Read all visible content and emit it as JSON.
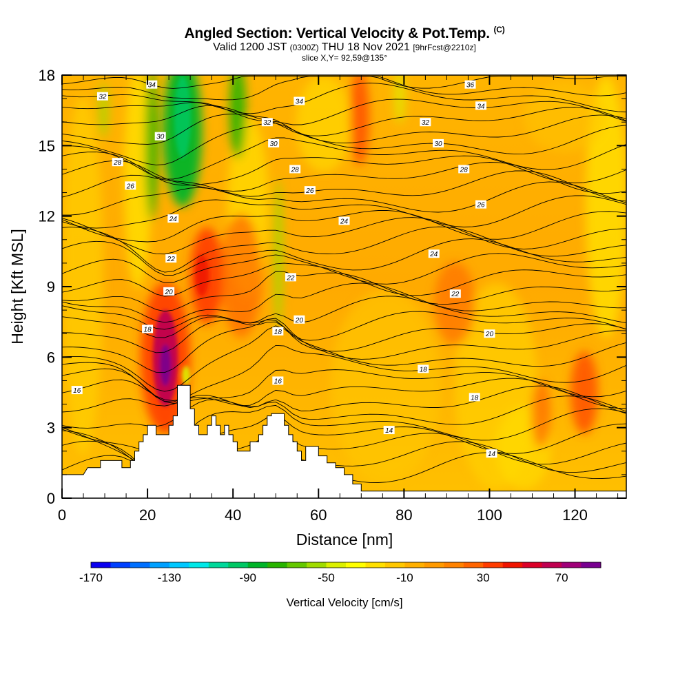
{
  "title": {
    "main": "Angled Section: Vertical Velocity & Pot.Temp.",
    "main_unit": "(C)",
    "valid_prefix": "Valid 1200 JST",
    "valid_zulu": "(0300Z)",
    "valid_date": "THU 18 Nov 2021",
    "forecast": "[9hrFcst@2210z]",
    "slice": "slice X,Y= 92,59@135°"
  },
  "chart_data": {
    "type": "heatmap",
    "xlabel": "Distance [nm]",
    "ylabel": "Height [Kft MSL]",
    "xlim": [
      0,
      132
    ],
    "ylim": [
      0,
      18
    ],
    "x_ticks": [
      "0",
      "20",
      "40",
      "60",
      "80",
      "100",
      "120"
    ],
    "y_ticks": [
      "0",
      "3",
      "6",
      "9",
      "12",
      "15",
      "18"
    ],
    "colorbar": {
      "label": "Vertical Velocity [cm/s]",
      "tick_labels": [
        "-170",
        "-130",
        "-90",
        "-50",
        "-10",
        "30",
        "70"
      ],
      "colors": [
        "#0a00f0",
        "#0040ff",
        "#0070ff",
        "#00a0ff",
        "#00c8ff",
        "#00e8e8",
        "#00d89a",
        "#00c864",
        "#00b428",
        "#28b400",
        "#64c800",
        "#a0dc00",
        "#dcf000",
        "#ffff00",
        "#ffe000",
        "#ffc800",
        "#ffb000",
        "#ff9a00",
        "#ff8200",
        "#ff6400",
        "#ff3c00",
        "#f01400",
        "#dc0028",
        "#c00050",
        "#a00078",
        "#780090"
      ]
    },
    "theta_contour_labels": [
      {
        "value": "34",
        "x": 21,
        "y": 17.6
      },
      {
        "value": "32",
        "x": 9.5,
        "y": 17.1
      },
      {
        "value": "30",
        "x": 23,
        "y": 15.4
      },
      {
        "value": "28",
        "x": 13,
        "y": 14.3
      },
      {
        "value": "26",
        "x": 16,
        "y": 13.3
      },
      {
        "value": "24",
        "x": 26,
        "y": 11.9
      },
      {
        "value": "22",
        "x": 25.5,
        "y": 10.2
      },
      {
        "value": "20",
        "x": 25,
        "y": 8.8
      },
      {
        "value": "18",
        "x": 20,
        "y": 7.2
      },
      {
        "value": "16",
        "x": 3.5,
        "y": 4.6
      },
      {
        "value": "34",
        "x": 55.5,
        "y": 16.9
      },
      {
        "value": "32",
        "x": 48,
        "y": 16.0
      },
      {
        "value": "30",
        "x": 49.5,
        "y": 15.1
      },
      {
        "value": "28",
        "x": 54.5,
        "y": 14.0
      },
      {
        "value": "26",
        "x": 58,
        "y": 13.1
      },
      {
        "value": "24",
        "x": 66,
        "y": 11.8
      },
      {
        "value": "22",
        "x": 53.5,
        "y": 9.4
      },
      {
        "value": "20",
        "x": 55.5,
        "y": 7.6
      },
      {
        "value": "18",
        "x": 50.5,
        "y": 7.1
      },
      {
        "value": "16",
        "x": 50.5,
        "y": 5.0
      },
      {
        "value": "36",
        "x": 95.5,
        "y": 17.6
      },
      {
        "value": "34",
        "x": 98,
        "y": 16.7
      },
      {
        "value": "32",
        "x": 85,
        "y": 16.0
      },
      {
        "value": "30",
        "x": 88,
        "y": 15.1
      },
      {
        "value": "28",
        "x": 94,
        "y": 14.0
      },
      {
        "value": "26",
        "x": 98,
        "y": 12.5
      },
      {
        "value": "24",
        "x": 87,
        "y": 10.4
      },
      {
        "value": "22",
        "x": 92,
        "y": 8.7
      },
      {
        "value": "20",
        "x": 100,
        "y": 7.0
      },
      {
        "value": "18",
        "x": 84.5,
        "y": 5.5
      },
      {
        "value": "18",
        "x": 96.5,
        "y": 4.3
      },
      {
        "value": "14",
        "x": 76.5,
        "y": 2.9
      },
      {
        "value": "14",
        "x": 100.5,
        "y": 1.9
      }
    ],
    "terrain_profile": [
      [
        0,
        1.0
      ],
      [
        5,
        1.0
      ],
      [
        6,
        1.3
      ],
      [
        9,
        1.3
      ],
      [
        9,
        1.6
      ],
      [
        14,
        1.6
      ],
      [
        14,
        1.3
      ],
      [
        16,
        1.3
      ],
      [
        16,
        1.6
      ],
      [
        17,
        1.6
      ],
      [
        17,
        2.0
      ],
      [
        18,
        2.0
      ],
      [
        18,
        2.4
      ],
      [
        19,
        2.4
      ],
      [
        19,
        2.7
      ],
      [
        20,
        2.7
      ],
      [
        20,
        3.1
      ],
      [
        22,
        3.1
      ],
      [
        22,
        2.7
      ],
      [
        25,
        2.7
      ],
      [
        25,
        3.1
      ],
      [
        26,
        3.1
      ],
      [
        26,
        3.5
      ],
      [
        27,
        3.5
      ],
      [
        27,
        4.8
      ],
      [
        30,
        4.8
      ],
      [
        30,
        3.8
      ],
      [
        31,
        3.8
      ],
      [
        31,
        3.1
      ],
      [
        32,
        3.1
      ],
      [
        32,
        2.7
      ],
      [
        34,
        2.7
      ],
      [
        34,
        3.1
      ],
      [
        35,
        3.1
      ],
      [
        35,
        3.5
      ],
      [
        36,
        3.5
      ],
      [
        36,
        3.1
      ],
      [
        37,
        3.1
      ],
      [
        37,
        2.7
      ],
      [
        38,
        2.7
      ],
      [
        38,
        3.1
      ],
      [
        39,
        3.1
      ],
      [
        39,
        2.7
      ],
      [
        40,
        2.7
      ],
      [
        40,
        2.4
      ],
      [
        41,
        2.4
      ],
      [
        41,
        2.0
      ],
      [
        44,
        2.0
      ],
      [
        44,
        2.4
      ],
      [
        46,
        2.4
      ],
      [
        46,
        2.7
      ],
      [
        47,
        2.7
      ],
      [
        47,
        3.1
      ],
      [
        48,
        3.1
      ],
      [
        48,
        3.5
      ],
      [
        49,
        3.5
      ],
      [
        49,
        3.6
      ],
      [
        52,
        3.6
      ],
      [
        52,
        3.1
      ],
      [
        53,
        3.1
      ],
      [
        53,
        2.7
      ],
      [
        54,
        2.7
      ],
      [
        54,
        2.4
      ],
      [
        55,
        2.4
      ],
      [
        55,
        2.0
      ],
      [
        56,
        2.0
      ],
      [
        56,
        1.6
      ],
      [
        57,
        1.6
      ],
      [
        57,
        2.2
      ],
      [
        60,
        2.2
      ],
      [
        60,
        1.8
      ],
      [
        62,
        1.8
      ],
      [
        62,
        1.5
      ],
      [
        64,
        1.5
      ],
      [
        64,
        1.3
      ],
      [
        66,
        1.3
      ],
      [
        66,
        1.0
      ],
      [
        68,
        1.0
      ],
      [
        68,
        0.6
      ],
      [
        70,
        0.6
      ],
      [
        70,
        0.3
      ],
      [
        132,
        0.3
      ]
    ]
  }
}
